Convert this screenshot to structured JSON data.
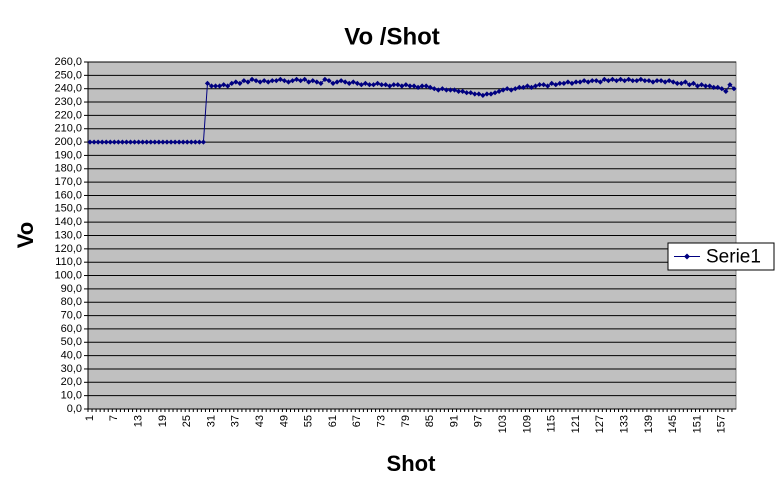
{
  "chart_data": {
    "type": "line",
    "title": "Vo /Shot",
    "x_label": "Shot",
    "y_label": "Vo",
    "categories": [
      1,
      null,
      null,
      null,
      null,
      null,
      7,
      null,
      null,
      null,
      null,
      null,
      13,
      null,
      null,
      null,
      null,
      null,
      19,
      null,
      null,
      null,
      null,
      null,
      25,
      null,
      null,
      null,
      null,
      null,
      31,
      null,
      null,
      null,
      null,
      null,
      37,
      null,
      null,
      null,
      null,
      null,
      43,
      null,
      null,
      null,
      null,
      null,
      49,
      null,
      null,
      null,
      null,
      null,
      55,
      null,
      null,
      null,
      null,
      null,
      61,
      null,
      null,
      null,
      null,
      null,
      67,
      null,
      null,
      null,
      null,
      null,
      73,
      null,
      null,
      null,
      null,
      null,
      79,
      null,
      null,
      null,
      null,
      null,
      85,
      null,
      null,
      null,
      null,
      null,
      91,
      null,
      null,
      null,
      null,
      null,
      97,
      null,
      null,
      null,
      null,
      null,
      103,
      null,
      null,
      null,
      null,
      null,
      109,
      null,
      null,
      null,
      null,
      null,
      115,
      null,
      null,
      null,
      null,
      null,
      121,
      null,
      null,
      null,
      null,
      null,
      127,
      null,
      null,
      null,
      null,
      null,
      133,
      null,
      null,
      null,
      null,
      null,
      139,
      null,
      null,
      null,
      null,
      null,
      145,
      null,
      null,
      null,
      null,
      null,
      151,
      null,
      null,
      null,
      null,
      null,
      157,
      null,
      null,
      null
    ],
    "series": [
      {
        "name": "Serie1",
        "color": "#000080",
        "values": [
          200,
          200,
          200,
          200,
          200,
          200,
          200,
          200,
          200,
          200,
          200,
          200,
          200,
          200,
          200,
          200,
          200,
          200,
          200,
          200,
          200,
          200,
          200,
          200,
          200,
          200,
          200,
          200,
          200,
          244,
          242,
          242,
          242,
          243,
          242,
          244,
          245,
          244,
          246,
          245,
          247,
          246,
          245,
          246,
          245,
          246,
          246,
          247,
          246,
          245,
          246,
          247,
          246,
          247,
          245,
          246,
          245,
          244,
          247,
          246,
          244,
          245,
          246,
          245,
          244,
          245,
          244,
          243,
          244,
          243,
          243,
          244,
          243,
          243,
          242,
          243,
          243,
          242,
          243,
          242,
          242,
          241,
          242,
          242,
          241,
          240,
          239,
          240,
          239,
          239,
          239,
          238,
          238,
          237,
          237,
          236,
          236,
          235,
          236,
          236,
          237,
          238,
          239,
          240,
          239,
          240,
          241,
          241,
          242,
          241,
          242,
          243,
          243,
          242,
          244,
          243,
          244,
          244,
          245,
          244,
          245,
          245,
          246,
          245,
          246,
          246,
          245,
          247,
          246,
          247,
          246,
          247,
          246,
          247,
          246,
          246,
          247,
          246,
          246,
          245,
          246,
          246,
          245,
          246,
          245,
          244,
          244,
          245,
          243,
          244,
          242,
          243,
          242,
          242,
          241,
          241,
          240,
          238,
          243,
          240
        ]
      }
    ],
    "ylim": [
      0,
      260
    ],
    "yticks": [
      {
        "value": 0,
        "label": "0,0"
      },
      {
        "value": 10,
        "label": "10,0"
      },
      {
        "value": 20,
        "label": "20,0"
      },
      {
        "value": 30,
        "label": "30,0"
      },
      {
        "value": 40,
        "label": "40,0"
      },
      {
        "value": 50,
        "label": "50,0"
      },
      {
        "value": 60,
        "label": "60,0"
      },
      {
        "value": 70,
        "label": "70,0"
      },
      {
        "value": 80,
        "label": "80,0"
      },
      {
        "value": 90,
        "label": "90,0"
      },
      {
        "value": 100,
        "label": "100,0"
      },
      {
        "value": 110,
        "label": "110,0"
      },
      {
        "value": 120,
        "label": "120,0"
      },
      {
        "value": 130,
        "label": "130,0"
      },
      {
        "value": 140,
        "label": "140,0"
      },
      {
        "value": 150,
        "label": "150,0"
      },
      {
        "value": 160,
        "label": "160,0"
      },
      {
        "value": 170,
        "label": "170,0"
      },
      {
        "value": 180,
        "label": "180,0"
      },
      {
        "value": 190,
        "label": "190,0"
      },
      {
        "value": 200,
        "label": "200,0"
      },
      {
        "value": 210,
        "label": "210,0"
      },
      {
        "value": 220,
        "label": "220,0"
      },
      {
        "value": 230,
        "label": "230,0"
      },
      {
        "value": 240,
        "label": "240,0"
      },
      {
        "value": 250,
        "label": "250,0"
      },
      {
        "value": 260,
        "label": "260,0"
      }
    ],
    "grid": true,
    "legend": "right",
    "plot_background": "#c0c0c0"
  }
}
